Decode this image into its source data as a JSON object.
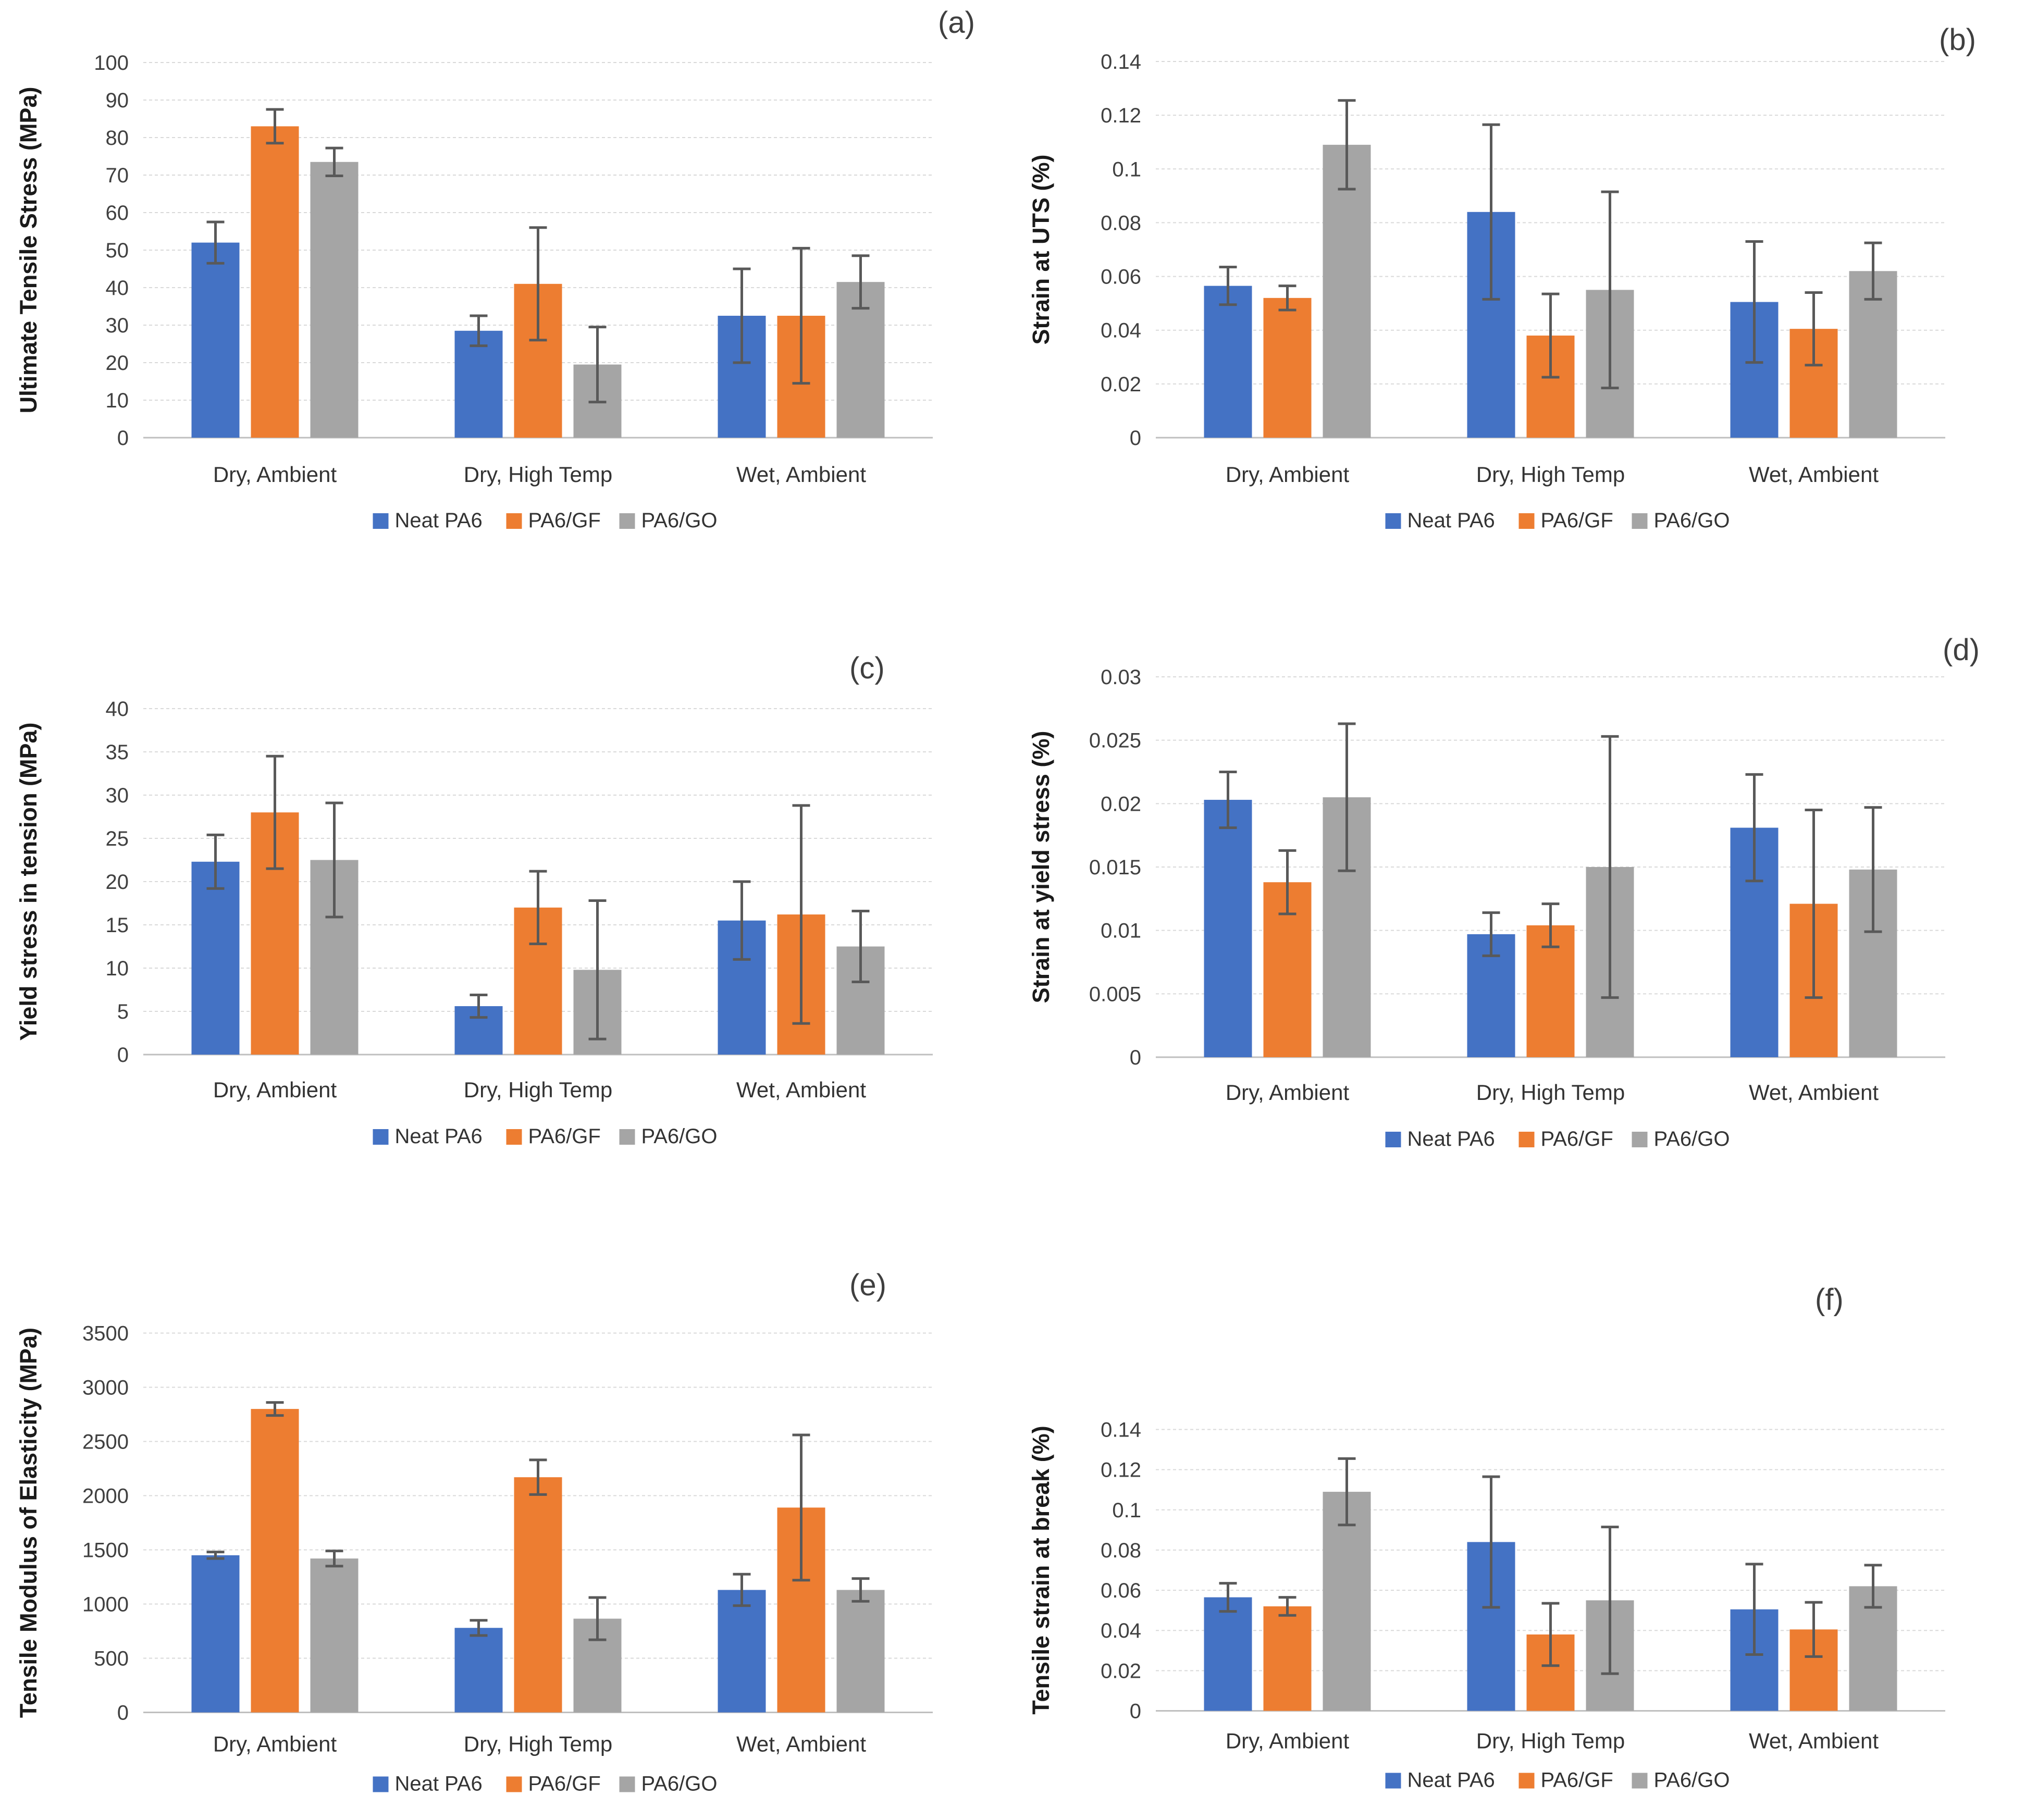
{
  "figure": {
    "background": "#ffffff",
    "series_colors": {
      "neat_pa6": "#4472C4",
      "pa6_gf": "#ED7D31",
      "pa6_go": "#A5A5A5"
    },
    "error_bar_color": "#595959",
    "gridline_color": "#D9D9D9",
    "axis_line_color": "#BFBFBF",
    "categories": [
      "Dry, Ambient",
      "Dry, High Temp",
      "Wet, Ambient"
    ],
    "legend_labels": [
      "Neat PA6",
      "PA6/GF",
      "PA6/GO"
    ]
  },
  "chart_data": [
    {
      "id": "a",
      "type": "bar",
      "panel_label": "(a)",
      "title": "",
      "xlabel": "",
      "ylabel": "Ultimate Tensile Stress (MPa)",
      "categories": [
        "Dry, Ambient",
        "Dry, High Temp",
        "Wet, Ambient"
      ],
      "series": [
        {
          "name": "Neat PA6",
          "color": "#4472C4",
          "values": [
            52,
            28.5,
            32.5
          ],
          "errors": [
            5.5,
            4,
            12.5
          ]
        },
        {
          "name": "PA6/GF",
          "color": "#ED7D31",
          "values": [
            83,
            41,
            32.5
          ],
          "errors": [
            4.5,
            15,
            18
          ]
        },
        {
          "name": "PA6/GO",
          "color": "#A5A5A5",
          "values": [
            73.5,
            19.5,
            41.5
          ],
          "errors": [
            3.7,
            10,
            7
          ]
        }
      ],
      "ylim": [
        0,
        100
      ],
      "yticks": [
        "0",
        "10",
        "20",
        "30",
        "40",
        "50",
        "60",
        "70",
        "80",
        "90",
        "100"
      ],
      "grid": true,
      "legend_position": "bottom"
    },
    {
      "id": "b",
      "type": "bar",
      "panel_label": "(b)",
      "title": "",
      "xlabel": "",
      "ylabel": "Strain at UTS (%)",
      "categories": [
        "Dry, Ambient",
        "Dry, High Temp",
        "Wet, Ambient"
      ],
      "series": [
        {
          "name": "Neat PA6",
          "color": "#4472C4",
          "values": [
            0.0565,
            0.084,
            0.0505
          ],
          "errors": [
            0.007,
            0.0325,
            0.0225
          ]
        },
        {
          "name": "PA6/GF",
          "color": "#ED7D31",
          "values": [
            0.052,
            0.038,
            0.0405
          ],
          "errors": [
            0.0045,
            0.0155,
            0.0135
          ]
        },
        {
          "name": "PA6/GO",
          "color": "#A5A5A5",
          "values": [
            0.109,
            0.055,
            0.062
          ],
          "errors": [
            0.0165,
            0.0365,
            0.0105
          ]
        }
      ],
      "ylim": [
        0,
        0.14
      ],
      "yticks": [
        "0",
        "0.02",
        "0.04",
        "0.06",
        "0.08",
        "0.1",
        "0.12",
        "0.14"
      ],
      "grid": true,
      "legend_position": "bottom"
    },
    {
      "id": "c",
      "type": "bar",
      "panel_label": "(c)",
      "title": "",
      "xlabel": "",
      "ylabel": "Yield stress in tension (MPa)",
      "categories": [
        "Dry, Ambient",
        "Dry, High Temp",
        "Wet, Ambient"
      ],
      "series": [
        {
          "name": "Neat PA6",
          "color": "#4472C4",
          "values": [
            22.3,
            5.6,
            15.5
          ],
          "errors": [
            3.1,
            1.3,
            4.5
          ]
        },
        {
          "name": "PA6/GF",
          "color": "#ED7D31",
          "values": [
            28,
            17,
            16.2
          ],
          "errors": [
            6.5,
            4.2,
            12.6
          ]
        },
        {
          "name": "PA6/GO",
          "color": "#A5A5A5",
          "values": [
            22.5,
            9.8,
            12.5
          ],
          "errors": [
            6.6,
            8,
            4.1
          ]
        }
      ],
      "ylim": [
        0,
        40
      ],
      "yticks": [
        "0",
        "5",
        "10",
        "15",
        "20",
        "25",
        "30",
        "35",
        "40"
      ],
      "grid": true,
      "legend_position": "bottom"
    },
    {
      "id": "d",
      "type": "bar",
      "panel_label": "(d)",
      "title": "",
      "xlabel": "",
      "ylabel": "Strain at yield stress (%)",
      "categories": [
        "Dry, Ambient",
        "Dry, High Temp",
        "Wet, Ambient"
      ],
      "series": [
        {
          "name": "Neat PA6",
          "color": "#4472C4",
          "values": [
            0.0203,
            0.0097,
            0.0181
          ],
          "errors": [
            0.0022,
            0.0017,
            0.0042
          ]
        },
        {
          "name": "PA6/GF",
          "color": "#ED7D31",
          "values": [
            0.0138,
            0.0104,
            0.0121
          ],
          "errors": [
            0.0025,
            0.0017,
            0.0074
          ]
        },
        {
          "name": "PA6/GO",
          "color": "#A5A5A5",
          "values": [
            0.0205,
            0.015,
            0.0148
          ],
          "errors": [
            0.0058,
            0.0103,
            0.0049
          ]
        }
      ],
      "ylim": [
        0,
        0.03
      ],
      "yticks": [
        "0",
        "0.005",
        "0.01",
        "0.015",
        "0.02",
        "0.025",
        "0.03"
      ],
      "grid": true,
      "legend_position": "bottom"
    },
    {
      "id": "e",
      "type": "bar",
      "panel_label": "(e)",
      "title": "",
      "xlabel": "",
      "ylabel": "Tensile Modulus of Elasticity (MPa)",
      "categories": [
        "Dry, Ambient",
        "Dry, High Temp",
        "Wet, Ambient"
      ],
      "series": [
        {
          "name": "Neat PA6",
          "color": "#4472C4",
          "values": [
            1450,
            780,
            1130
          ],
          "errors": [
            30,
            70,
            145
          ]
        },
        {
          "name": "PA6/GF",
          "color": "#ED7D31",
          "values": [
            2800,
            2170,
            1890
          ],
          "errors": [
            60,
            160,
            670
          ]
        },
        {
          "name": "PA6/GO",
          "color": "#A5A5A5",
          "values": [
            1420,
            865,
            1130
          ],
          "errors": [
            70,
            195,
            105
          ]
        }
      ],
      "ylim": [
        0,
        3500
      ],
      "yticks": [
        "0",
        "500",
        "1000",
        "1500",
        "2000",
        "2500",
        "3000",
        "3500"
      ],
      "grid": true,
      "legend_position": "bottom"
    },
    {
      "id": "f",
      "type": "bar",
      "panel_label": "(f)",
      "title": "",
      "xlabel": "",
      "ylabel": "Tensile strain at break (%)",
      "categories": [
        "Dry, Ambient",
        "Dry, High Temp",
        "Wet, Ambient"
      ],
      "series": [
        {
          "name": "Neat PA6",
          "color": "#4472C4",
          "values": [
            0.0565,
            0.084,
            0.0505
          ],
          "errors": [
            0.007,
            0.0325,
            0.0225
          ]
        },
        {
          "name": "PA6/GF",
          "color": "#ED7D31",
          "values": [
            0.052,
            0.038,
            0.0405
          ],
          "errors": [
            0.0045,
            0.0155,
            0.0135
          ]
        },
        {
          "name": "PA6/GO",
          "color": "#A5A5A5",
          "values": [
            0.109,
            0.055,
            0.062
          ],
          "errors": [
            0.0165,
            0.0365,
            0.0105
          ]
        }
      ],
      "ylim": [
        0,
        0.14
      ],
      "yticks": [
        "0",
        "0.02",
        "0.04",
        "0.06",
        "0.08",
        "0.1",
        "0.12",
        "0.14"
      ],
      "grid": true,
      "legend_position": "bottom"
    }
  ]
}
